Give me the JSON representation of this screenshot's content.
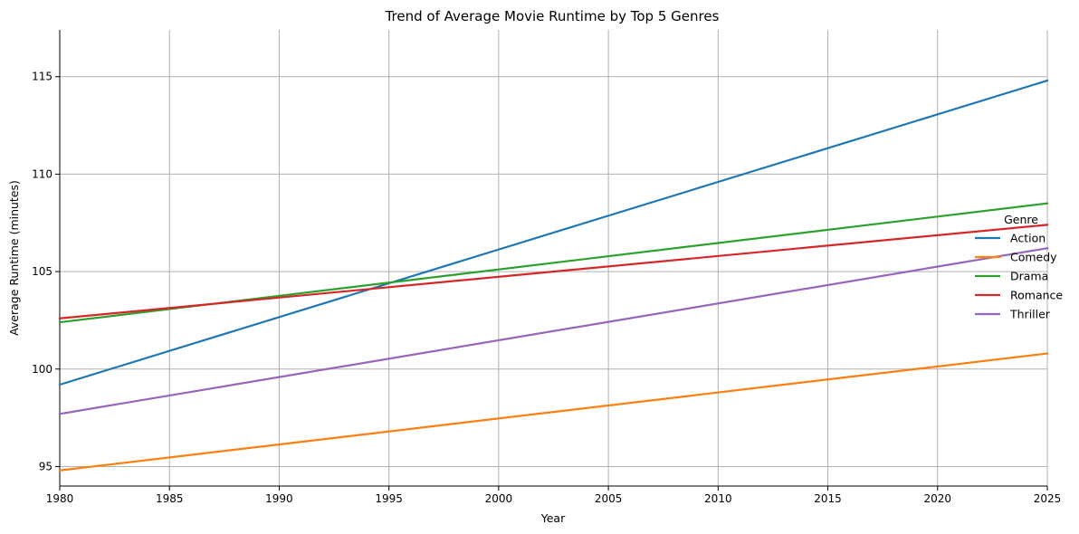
{
  "chart_data": {
    "type": "line",
    "title": "Trend of Average Movie Runtime by Top 5 Genres",
    "xlabel": "Year",
    "ylabel": "Average Runtime (minutes)",
    "xlim": [
      1980,
      2025
    ],
    "ylim": [
      94.0,
      117.4
    ],
    "xticks": [
      1980,
      1985,
      1990,
      1995,
      2000,
      2005,
      2010,
      2015,
      2020,
      2025
    ],
    "yticks": [
      95,
      100,
      105,
      110,
      115
    ],
    "grid": true,
    "legend": {
      "title": "Genre",
      "placement": "right"
    },
    "series": [
      {
        "name": "Action",
        "color": "#1f77b4",
        "x": [
          1980,
          2025
        ],
        "y": [
          99.2,
          114.8
        ]
      },
      {
        "name": "Comedy",
        "color": "#ff7f0e",
        "x": [
          1980,
          2025
        ],
        "y": [
          94.8,
          100.8
        ]
      },
      {
        "name": "Drama",
        "color": "#2ca02c",
        "x": [
          1980,
          2025
        ],
        "y": [
          102.4,
          108.5
        ]
      },
      {
        "name": "Romance",
        "color": "#d62728",
        "x": [
          1980,
          2025
        ],
        "y": [
          102.6,
          107.4
        ]
      },
      {
        "name": "Thriller",
        "color": "#9467bd",
        "x": [
          1980,
          2025
        ],
        "y": [
          97.7,
          106.2
        ]
      }
    ]
  }
}
